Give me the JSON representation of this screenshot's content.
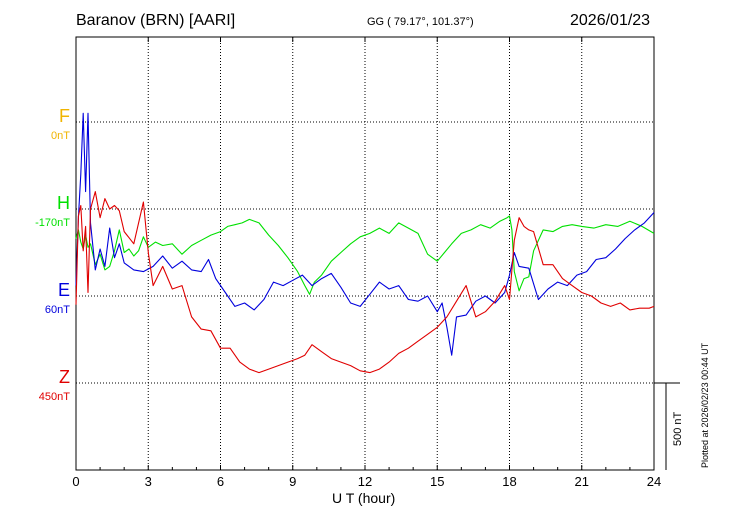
{
  "header": {
    "station": "Baranov (BRN)  [AARI]",
    "coords": "GG ( 79.17°, 101.37°)",
    "date": "2026/01/23"
  },
  "footer": {
    "plotted": "Plotted at 2026/02/23 00:44 UT"
  },
  "colors": {
    "F": "#f0b400",
    "H": "#00e000",
    "E": "#0000dd",
    "Z": "#e00000"
  },
  "chart_data": {
    "type": "line",
    "title": "",
    "xlabel": "U T (hour)",
    "ylabel": "",
    "xlim": [
      0,
      24
    ],
    "x_ticks": [
      0,
      3,
      6,
      9,
      12,
      15,
      18,
      21,
      24
    ],
    "x_tick_labels": [
      "0",
      "3",
      "6",
      "9",
      "12",
      "15",
      "18",
      "21",
      "24"
    ],
    "grid": true,
    "scale_bar": {
      "value": 500,
      "label": "500 nT"
    },
    "components": [
      {
        "name": "F",
        "baseline_label": "0nT",
        "color": "#f0b400"
      },
      {
        "name": "H",
        "baseline_label": "-170nT",
        "color": "#00e000"
      },
      {
        "name": "E",
        "baseline_label": "60nT",
        "color": "#0000dd"
      },
      {
        "name": "Z",
        "baseline_label": "450nT",
        "color": "#e00000"
      }
    ],
    "series": [
      {
        "name": "H",
        "color": "#00e000",
        "x": [
          0,
          0.1,
          0.2,
          0.3,
          0.4,
          0.5,
          0.6,
          0.8,
          1.0,
          1.2,
          1.4,
          1.6,
          1.8,
          2.0,
          2.2,
          2.4,
          2.6,
          2.8,
          3.0,
          3.3,
          3.6,
          4.0,
          4.4,
          4.8,
          5.2,
          5.6,
          6.0,
          6.3,
          6.6,
          6.9,
          7.2,
          7.6,
          8.0,
          8.4,
          8.8,
          9.2,
          9.5,
          9.7,
          9.9,
          10.2,
          10.6,
          11.0,
          11.4,
          11.8,
          12.2,
          12.6,
          13.0,
          13.4,
          13.8,
          14.2,
          14.6,
          15.0,
          15.3,
          15.6,
          16.0,
          16.4,
          16.8,
          17.2,
          17.6,
          17.9,
          18.0,
          18.1,
          18.2,
          18.4,
          18.6,
          18.8,
          19.0,
          19.4,
          19.8,
          20.2,
          20.6,
          21.0,
          21.5,
          22.0,
          22.5,
          23.0,
          23.5,
          24.0
        ],
        "y": [
          -170,
          -120,
          -190,
          -230,
          -150,
          -220,
          -200,
          -320,
          -260,
          -350,
          -330,
          -240,
          -120,
          -250,
          -230,
          -270,
          -240,
          -160,
          -220,
          -190,
          -210,
          -200,
          -260,
          -210,
          -180,
          -150,
          -130,
          -100,
          -90,
          -80,
          -60,
          -80,
          -150,
          -210,
          -280,
          -360,
          -440,
          -490,
          -420,
          -380,
          -300,
          -250,
          -200,
          -160,
          -140,
          -110,
          -140,
          -80,
          -110,
          -140,
          -260,
          -300,
          -250,
          -200,
          -140,
          -120,
          -90,
          -110,
          -70,
          -50,
          -40,
          -120,
          -360,
          -470,
          -400,
          -390,
          -240,
          -120,
          -130,
          -100,
          -90,
          -100,
          -110,
          -90,
          -100,
          -70,
          -100,
          -140
        ]
      },
      {
        "name": "E",
        "color": "#0000dd",
        "x": [
          0,
          0.1,
          0.2,
          0.3,
          0.4,
          0.5,
          0.6,
          0.8,
          1.0,
          1.2,
          1.4,
          1.6,
          1.8,
          2.0,
          2.4,
          2.8,
          3.2,
          3.6,
          4.0,
          4.4,
          4.8,
          5.2,
          5.5,
          5.8,
          6.2,
          6.6,
          7.0,
          7.4,
          7.8,
          8.2,
          8.6,
          9.0,
          9.4,
          9.8,
          10.2,
          10.6,
          11.0,
          11.4,
          11.8,
          12.2,
          12.6,
          13.0,
          13.4,
          13.8,
          14.2,
          14.6,
          15.0,
          15.2,
          15.4,
          15.6,
          15.8,
          16.2,
          16.6,
          17.0,
          17.4,
          17.8,
          18.0,
          18.2,
          18.4,
          18.8,
          19.2,
          19.6,
          20.0,
          20.4,
          20.8,
          21.2,
          21.6,
          22.0,
          22.4,
          22.8,
          23.2,
          23.6,
          24.0
        ],
        "y": [
          60,
          450,
          700,
          1050,
          600,
          1050,
          420,
          150,
          270,
          170,
          390,
          220,
          300,
          190,
          150,
          140,
          170,
          230,
          160,
          200,
          150,
          140,
          210,
          100,
          20,
          -60,
          -40,
          -80,
          -20,
          80,
          60,
          90,
          120,
          60,
          100,
          130,
          50,
          -40,
          -60,
          10,
          80,
          40,
          60,
          -20,
          -30,
          0,
          -90,
          -40,
          -180,
          -340,
          -120,
          -110,
          -30,
          0,
          -40,
          20,
          120,
          250,
          170,
          160,
          -20,
          40,
          80,
          60,
          120,
          140,
          210,
          220,
          270,
          330,
          380,
          420,
          480
        ]
      },
      {
        "name": "Z",
        "color": "#e00000",
        "x": [
          0,
          0.1,
          0.2,
          0.3,
          0.4,
          0.5,
          0.6,
          0.8,
          1.0,
          1.2,
          1.4,
          1.6,
          1.8,
          2.0,
          2.4,
          2.8,
          3.0,
          3.2,
          3.6,
          4.0,
          4.4,
          4.8,
          5.2,
          5.6,
          6.0,
          6.4,
          6.8,
          7.2,
          7.6,
          8.0,
          8.4,
          8.8,
          9.2,
          9.5,
          9.8,
          10.2,
          10.6,
          11.0,
          11.4,
          11.8,
          12.2,
          12.6,
          13.0,
          13.4,
          13.8,
          14.2,
          14.6,
          15.0,
          15.4,
          15.8,
          16.2,
          16.6,
          17.0,
          17.4,
          17.8,
          18.0,
          18.2,
          18.4,
          18.6,
          18.8,
          19.0,
          19.4,
          19.8,
          20.2,
          20.6,
          21.0,
          21.4,
          21.8,
          22.2,
          22.6,
          23.0,
          23.4,
          23.8,
          24.0
        ],
        "y": [
          450,
          960,
          1020,
          760,
          900,
          520,
          1000,
          1100,
          950,
          1060,
          1000,
          1020,
          990,
          870,
          800,
          1040,
          750,
          560,
          670,
          540,
          560,
          380,
          310,
          300,
          200,
          200,
          120,
          80,
          60,
          80,
          100,
          120,
          140,
          160,
          220,
          180,
          140,
          120,
          100,
          70,
          60,
          80,
          120,
          170,
          200,
          240,
          280,
          320,
          380,
          470,
          560,
          380,
          410,
          470,
          560,
          480,
          820,
          950,
          900,
          880,
          870,
          680,
          680,
          600,
          560,
          520,
          500,
          460,
          440,
          460,
          420,
          430,
          430,
          440
        ]
      }
    ]
  }
}
